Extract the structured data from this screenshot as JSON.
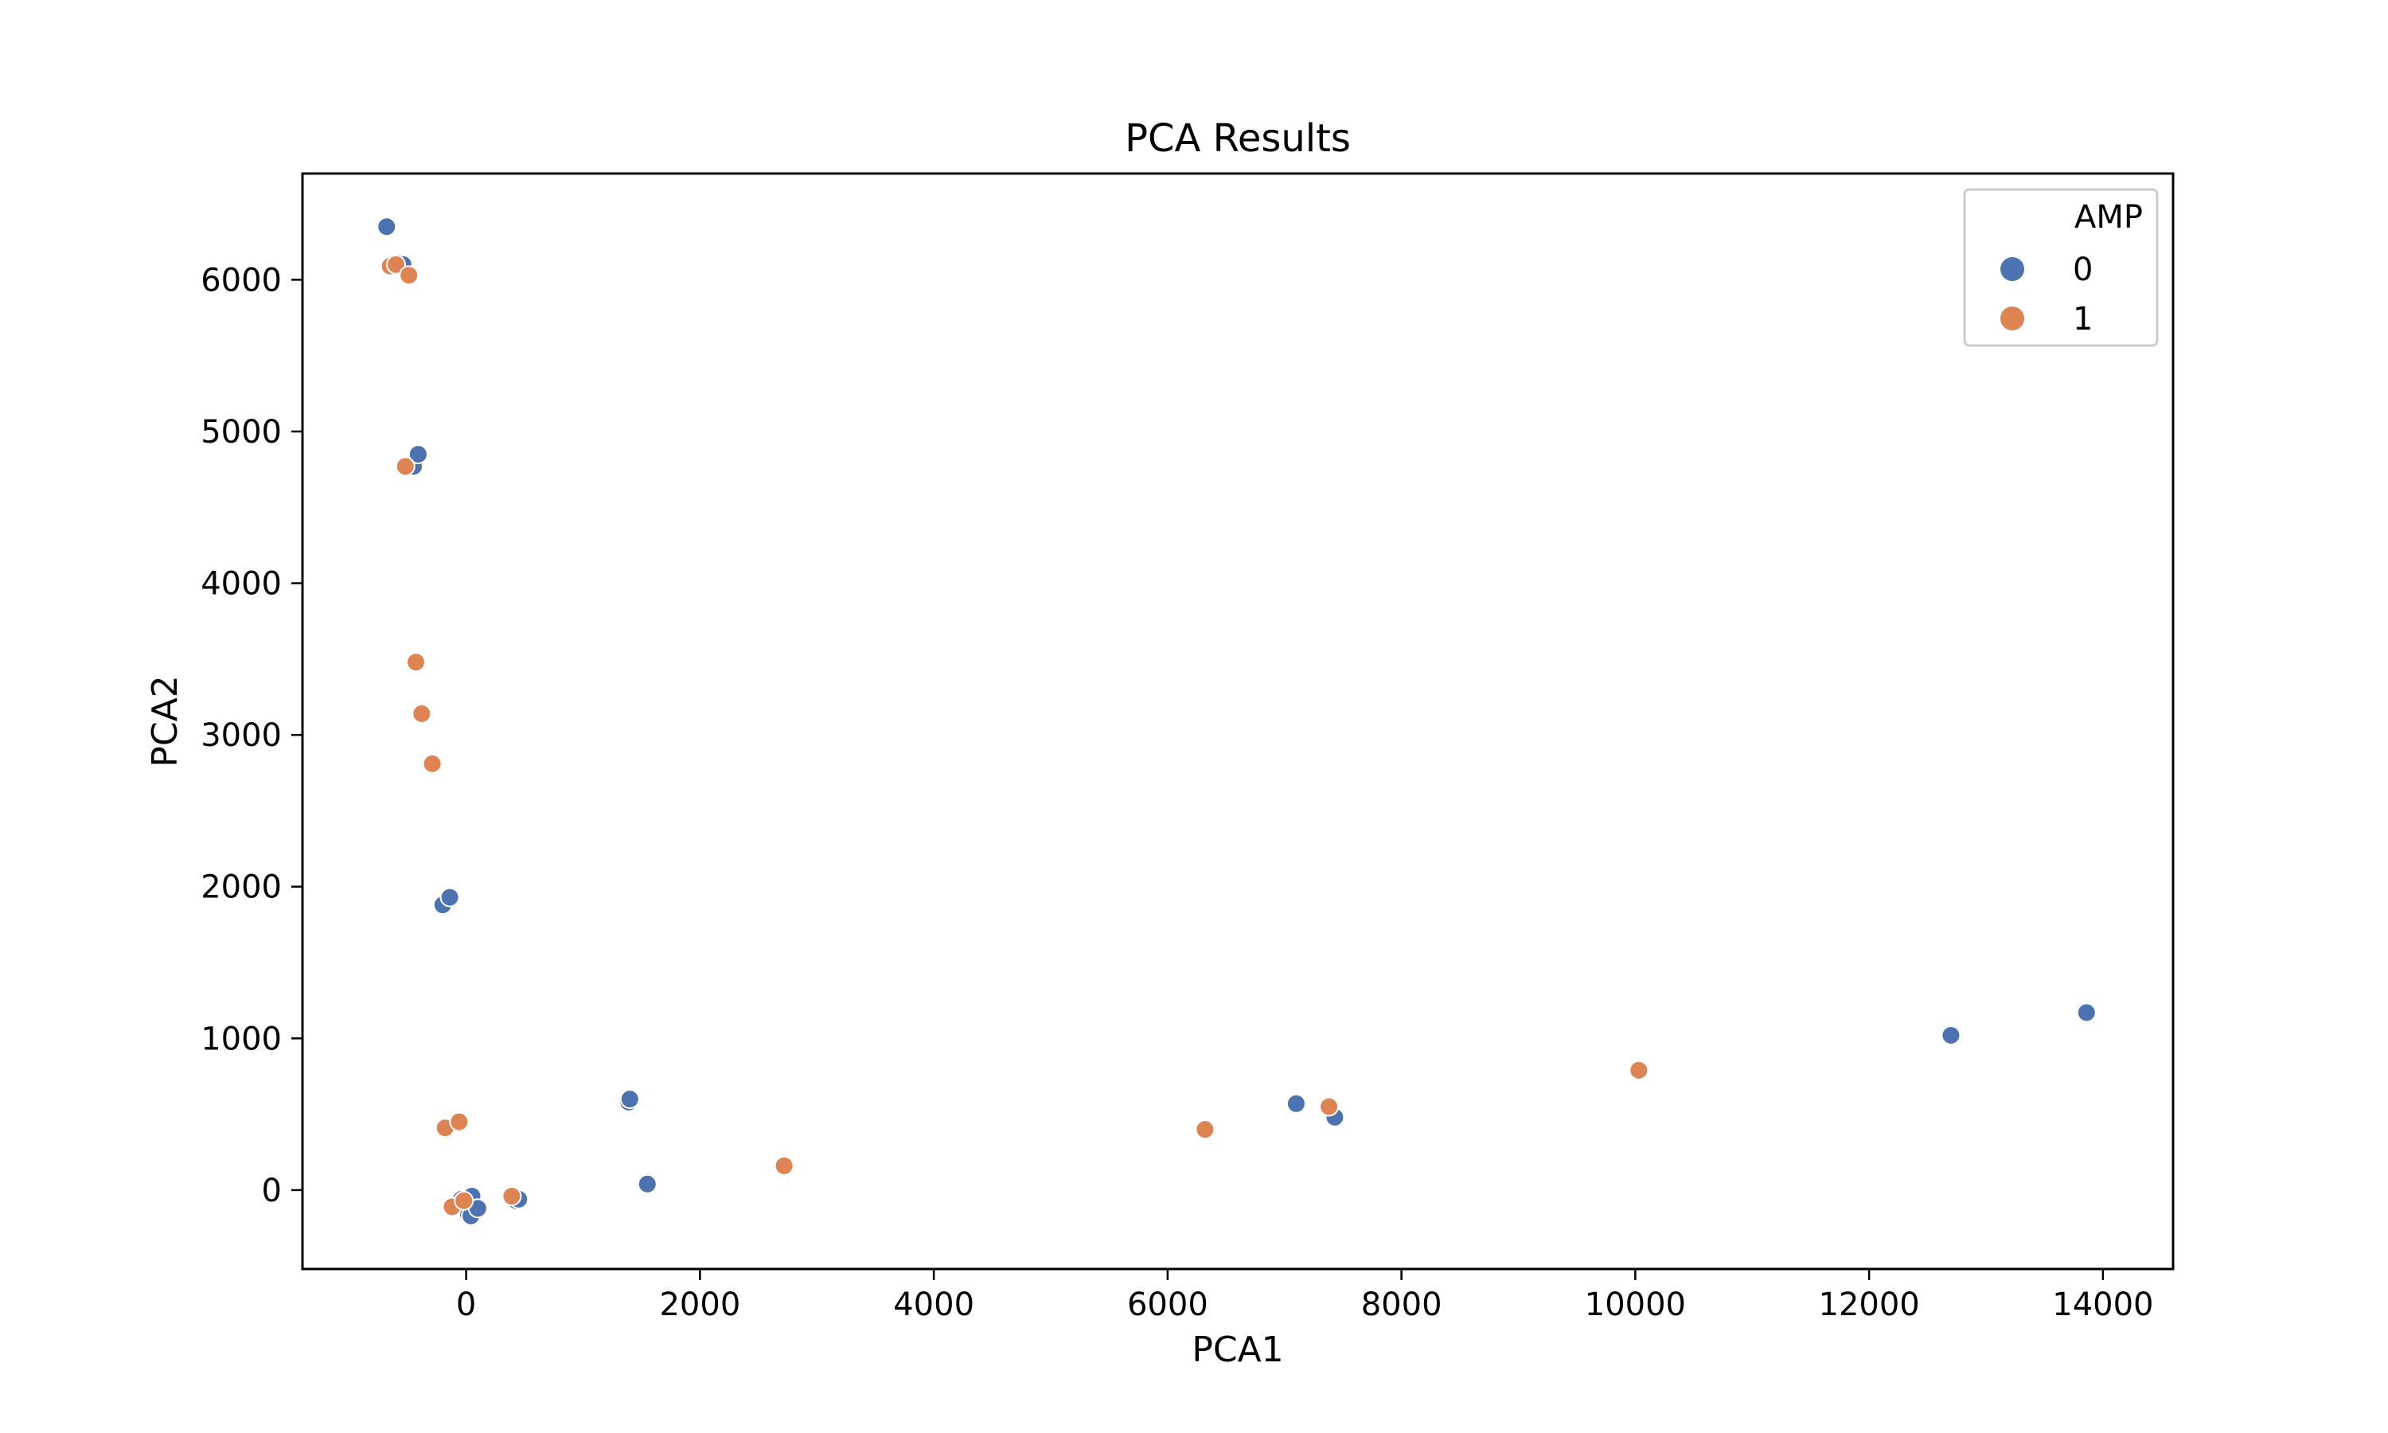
{
  "chart_data": {
    "type": "scatter",
    "title": "PCA Results",
    "xlabel": "PCA1",
    "ylabel": "PCA2",
    "xlim": [
      -1400,
      14600
    ],
    "ylim": [
      -520,
      6700
    ],
    "xticks": [
      0,
      2000,
      4000,
      6000,
      8000,
      10000,
      12000,
      14000
    ],
    "yticks": [
      0,
      1000,
      2000,
      3000,
      4000,
      5000,
      6000
    ],
    "grid": false,
    "legend": {
      "title": "AMP",
      "placement": "top-right"
    },
    "series": [
      {
        "name": "0",
        "color": "#4c72b0",
        "points": [
          [
            -680,
            6350
          ],
          [
            -560,
            6110
          ],
          [
            -540,
            6100
          ],
          [
            -450,
            4770
          ],
          [
            -410,
            4850
          ],
          [
            -200,
            1880
          ],
          [
            -140,
            1930
          ],
          [
            1390,
            580
          ],
          [
            1400,
            600
          ],
          [
            1550,
            40
          ],
          [
            -40,
            -60
          ],
          [
            10,
            -80
          ],
          [
            50,
            -40
          ],
          [
            20,
            -160
          ],
          [
            40,
            -170
          ],
          [
            100,
            -120
          ],
          [
            430,
            -70
          ],
          [
            450,
            -60
          ],
          [
            7100,
            570
          ],
          [
            7430,
            480
          ],
          [
            12700,
            1020
          ],
          [
            13860,
            1170
          ]
        ]
      },
      {
        "name": "1",
        "color": "#dd8452",
        "points": [
          [
            -650,
            6090
          ],
          [
            -600,
            6100
          ],
          [
            -490,
            6030
          ],
          [
            -520,
            4770
          ],
          [
            -430,
            3480
          ],
          [
            -380,
            3140
          ],
          [
            -290,
            2810
          ],
          [
            -180,
            410
          ],
          [
            -60,
            450
          ],
          [
            -120,
            -110
          ],
          [
            -20,
            -70
          ],
          [
            390,
            -40
          ],
          [
            2720,
            160
          ],
          [
            6320,
            400
          ],
          [
            7380,
            550
          ],
          [
            10030,
            790
          ]
        ]
      }
    ]
  }
}
